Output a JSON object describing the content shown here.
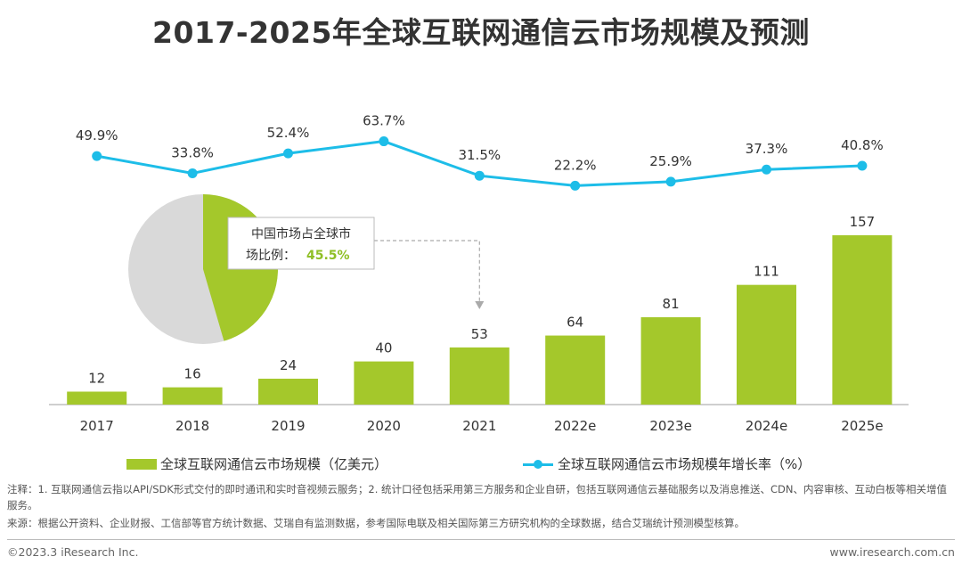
{
  "title": "2017-2025年全球互联网通信云市场规模及预测",
  "chart_data": {
    "type": "bar",
    "categories": [
      "2017",
      "2018",
      "2019",
      "2020",
      "2021",
      "2022e",
      "2023e",
      "2024e",
      "2025e"
    ],
    "series": [
      {
        "name": "全球互联网通信云市场规模（亿美元）",
        "type": "bar",
        "values": [
          12,
          16,
          24,
          40,
          53,
          64,
          81,
          111,
          157
        ]
      },
      {
        "name": "全球互联网通信云市场规模年增长率（%）",
        "type": "line",
        "values": [
          49.9,
          33.8,
          52.4,
          63.7,
          31.5,
          22.2,
          25.9,
          37.3,
          40.8
        ]
      }
    ],
    "ylim_bar": [
      0,
      170
    ],
    "growth_labels": [
      "49.9%",
      "33.8%",
      "52.4%",
      "63.7%",
      "31.5%",
      "22.2%",
      "25.9%",
      "37.3%",
      "40.8%"
    ],
    "pie": {
      "china_share": 45.5,
      "callout_line1": "中国市场占全球市",
      "callout_line2": "场比例：",
      "callout_value": "45.5%",
      "points_to": "2021"
    },
    "colors": {
      "bar": "#a4c82b",
      "line": "#1dbde8",
      "pie_rest": "#d9d9d9",
      "callout_value": "#8fbf26"
    }
  },
  "legend": {
    "bar_label": "全球互联网通信云市场规模（亿美元）",
    "line_label": "全球互联网通信云市场规模年增长率（%）"
  },
  "note": "注释：1. 互联网通信云指以API/SDK形式交付的即时通讯和实时音视频云服务；2. 统计口径包括采用第三方服务和企业自研，包括互联网通信云基础服务以及消息推送、CDN、内容审核、互动白板等相关增值服务。",
  "source": "来源：根据公开资料、企业财报、工信部等官方统计数据、艾瑞自有监测数据，参考国际电联及相关国际第三方研究机构的全球数据，结合艾瑞统计预测模型核算。",
  "copyright": "©2023.3 iResearch Inc.",
  "website": "www.iresearch.com.cn"
}
